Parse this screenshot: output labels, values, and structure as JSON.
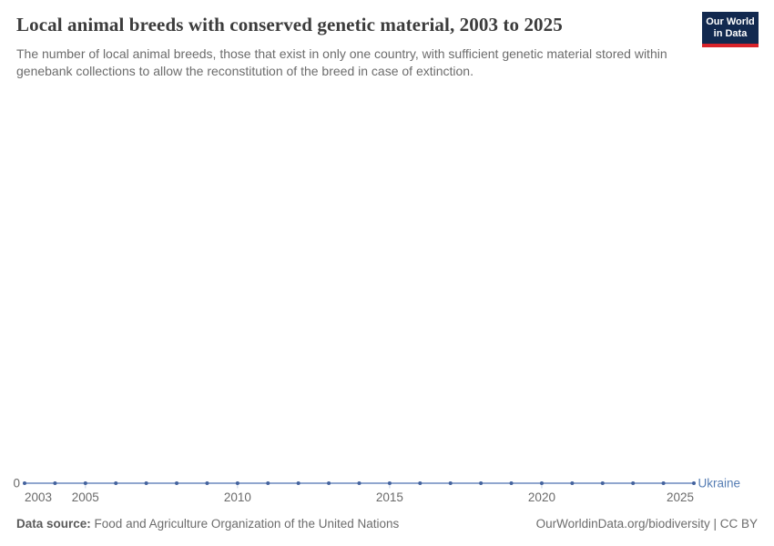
{
  "header": {
    "title": "Local animal breeds with conserved genetic material, 2003 to 2025",
    "subtitle": "The number of local animal breeds, those that exist in only one country, with sufficient genetic material stored within genebank collections to allow the reconstitution of the breed in case of extinction.",
    "logo": {
      "line1": "Our World",
      "line2": "in Data",
      "bg_color": "#12294f",
      "accent_color": "#d8232a"
    }
  },
  "chart_data": {
    "type": "line",
    "title": "Local animal breeds with conserved genetic material, 2003 to 2025",
    "x": [
      2003,
      2004,
      2005,
      2006,
      2007,
      2008,
      2009,
      2010,
      2011,
      2012,
      2013,
      2014,
      2015,
      2016,
      2017,
      2018,
      2019,
      2020,
      2021,
      2022,
      2023,
      2024,
      2025
    ],
    "series": [
      {
        "name": "Ukraine",
        "color": "#577eb4",
        "values": [
          0,
          0,
          0,
          0,
          0,
          0,
          0,
          0,
          0,
          0,
          0,
          0,
          0,
          0,
          0,
          0,
          0,
          0,
          0,
          0,
          0,
          0,
          0
        ]
      }
    ],
    "x_ticks": [
      2003,
      2005,
      2010,
      2015,
      2020,
      2025
    ],
    "y_ticks": [
      0
    ],
    "xlim": [
      2003,
      2025
    ],
    "grid": false,
    "legend": "end-of-line-label",
    "line_color": "#6b89bd",
    "point_color": "#44639e",
    "tick_mark_color": "#c3cfe2",
    "axis_text_color": "#6a6a6a"
  },
  "footer": {
    "datasource_label": "Data source:",
    "datasource": "Food and Agriculture Organization of the United Nations",
    "credit": "OurWorldinData.org/biodiversity | CC BY"
  }
}
